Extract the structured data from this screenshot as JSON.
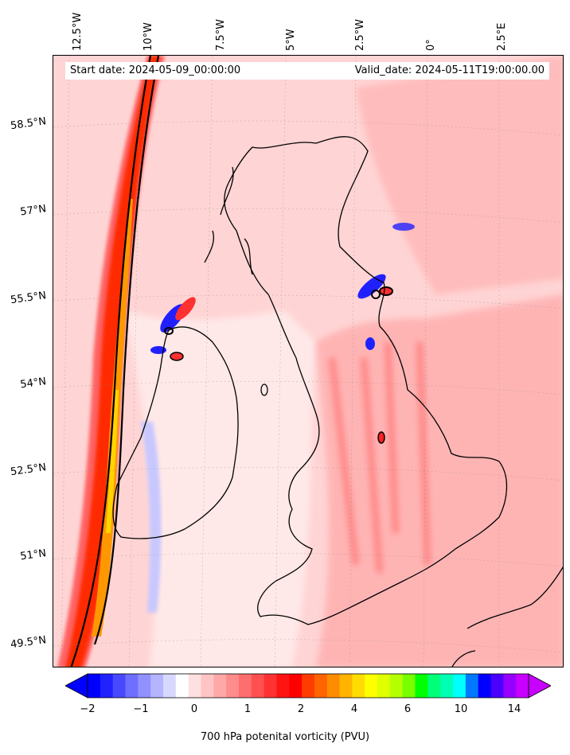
{
  "start_date": "Start date: 2024-05-09_00:00:00",
  "valid_date": "Valid_date: 2024-05-11T19:00:00.00",
  "lon_labels": [
    "12.5°W",
    "10°W",
    "7.5°W",
    "5°W",
    "2.5°W",
    "0°",
    "2.5°E"
  ],
  "lat_labels": [
    "58.5°N",
    "57°N",
    "55.5°N",
    "54°N",
    "52.5°N",
    "51°N",
    "49.5°N"
  ],
  "colorbar": {
    "label": "700 hPa potenital vorticity (PVU)",
    "ticks": [
      "−2",
      "−1",
      "0",
      "1",
      "2",
      "4",
      "6",
      "10",
      "14"
    ],
    "colors": [
      "#0000ff",
      "#2222ff",
      "#4848ff",
      "#6e6eff",
      "#9090ff",
      "#b4b4ff",
      "#d8d8ff",
      "#ffffff",
      "#ffe0e0",
      "#ffc4c4",
      "#ffa8a8",
      "#ff8c8c",
      "#ff6e6e",
      "#ff5050",
      "#ff3232",
      "#ff1414",
      "#ff0000",
      "#ff3c00",
      "#ff6400",
      "#ff8c00",
      "#ffb400",
      "#ffdc00",
      "#ffff00",
      "#e0ff00",
      "#b4ff00",
      "#78ff00",
      "#00ff00",
      "#00ff78",
      "#00ffb4",
      "#00ffff",
      "#0078ff",
      "#0000ff",
      "#4b00ff",
      "#9600ff",
      "#c800ff"
    ]
  },
  "field_colors": {
    "background": "#ffd4d4",
    "low": "#ffe8e8",
    "mid": "#ffaaaa",
    "high": "#ff6060",
    "ridge": "#ff2a00",
    "core": "#ff9800",
    "peak": "#ffd400",
    "negative": "#2020ff",
    "negative_light": "#c8c8ff"
  }
}
